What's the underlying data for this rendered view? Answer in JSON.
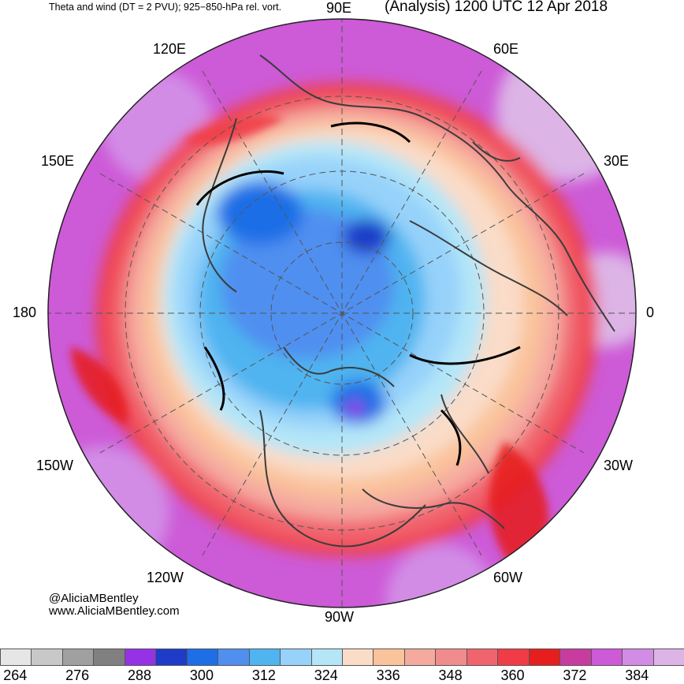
{
  "title_left": "Theta and wind (DT = 2 PVU); 925−850-hPa rel. vort.",
  "title_right": "(Analysis) 1200 UTC 12 Apr 2018",
  "longitude_labels": {
    "lon_90e": "90E",
    "lon_60e": "60E",
    "lon_30e": "30E",
    "lon_0": "0",
    "lon_30w": "30W",
    "lon_60w": "60W",
    "lon_90w": "90W",
    "lon_120w": "120W",
    "lon_150w": "150W",
    "lon_180": "180",
    "lon_150e": "150E",
    "lon_120e": "120E"
  },
  "credit": {
    "handle": "@AliciaMBentley",
    "website": "www.AliciaMBentley.com"
  },
  "colorbar": {
    "colors": [
      "#e6e6e6",
      "#c8c8c8",
      "#a0a0a0",
      "#808080",
      "#9632e6",
      "#1e3cc8",
      "#1e6ee6",
      "#508ff0",
      "#50b4f0",
      "#96d2fa",
      "#b4e6f8",
      "#fadcc8",
      "#fac39b",
      "#f5aaa0",
      "#f08c8c",
      "#f0646e",
      "#f03c46",
      "#e61e1e",
      "#c83ca0",
      "#cd5ad7",
      "#d28ce6",
      "#dcb4e6"
    ],
    "tick_labels": [
      "264",
      "276",
      "288",
      "300",
      "312",
      "324",
      "336",
      "348",
      "360",
      "372",
      "384"
    ]
  }
}
